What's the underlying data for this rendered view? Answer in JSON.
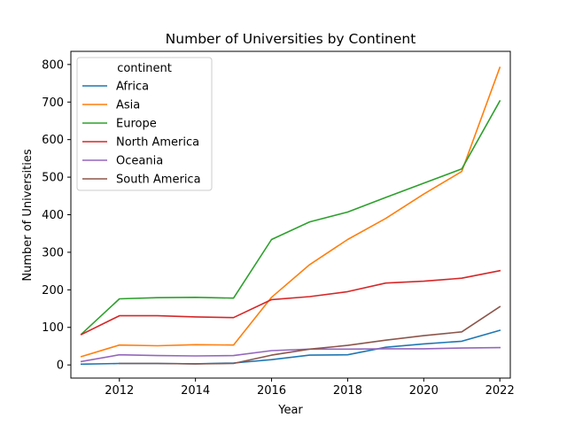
{
  "chart_data": {
    "type": "line",
    "title": "Number of Universities by Continent",
    "xlabel": "Year",
    "ylabel": "Number of Universities",
    "xlim": [
      2010.725,
      2022.275
    ],
    "ylim": [
      -35,
      835
    ],
    "xticks": [
      2012,
      2014,
      2016,
      2018,
      2020,
      2022
    ],
    "yticks": [
      0,
      100,
      200,
      300,
      400,
      500,
      600,
      700,
      800
    ],
    "grid": false,
    "legend": {
      "title": "continent",
      "placement": "top-left"
    },
    "x": [
      2011,
      2012,
      2013,
      2014,
      2015,
      2016,
      2017,
      2018,
      2019,
      2020,
      2021,
      2022
    ],
    "series": [
      {
        "name": "Africa",
        "color": "#1f77b4",
        "values": [
          2,
          4,
          4,
          3,
          5,
          14,
          26,
          27,
          47,
          56,
          63,
          92
        ]
      },
      {
        "name": "Asia",
        "color": "#ff7f0e",
        "values": [
          22,
          53,
          51,
          54,
          53,
          180,
          267,
          334,
          390,
          455,
          515,
          792
        ]
      },
      {
        "name": "Europe",
        "color": "#2ca02c",
        "values": [
          82,
          176,
          179,
          180,
          178,
          334,
          381,
          407,
          446,
          484,
          522,
          703
        ]
      },
      {
        "name": "North America",
        "color": "#d62728",
        "values": [
          81,
          131,
          131,
          128,
          126,
          174,
          182,
          195,
          218,
          223,
          231,
          251
        ]
      },
      {
        "name": "Oceania",
        "color": "#9467bd",
        "values": [
          9,
          27,
          25,
          24,
          25,
          38,
          42,
          42,
          43,
          43,
          45,
          46
        ]
      },
      {
        "name": "South America",
        "color": "#8c564b",
        "values": [
          null,
          4,
          4,
          3,
          4,
          26,
          42,
          52,
          66,
          78,
          88,
          155
        ]
      }
    ]
  }
}
